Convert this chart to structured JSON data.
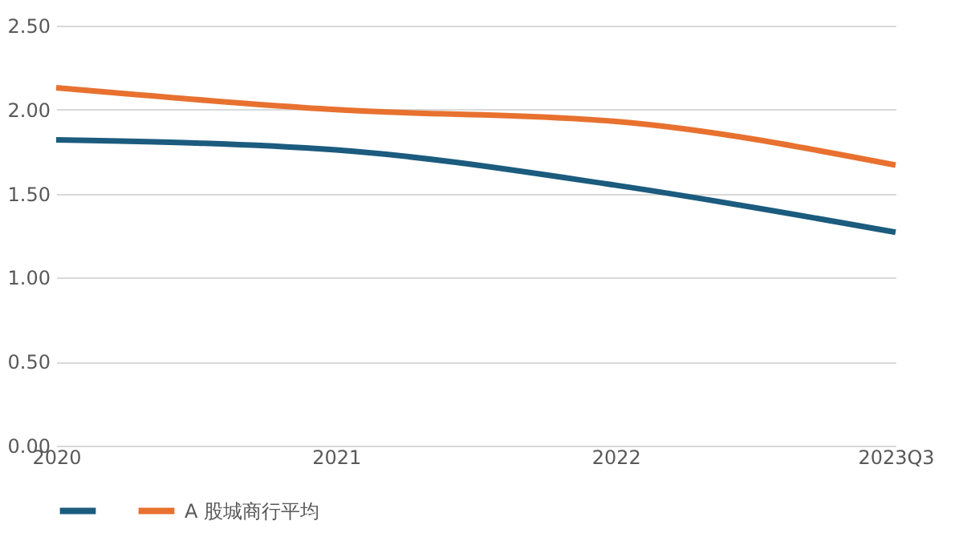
{
  "chart_data": {
    "type": "line",
    "categories": [
      "2020",
      "2021",
      "2022",
      "2023Q3"
    ],
    "series": [
      {
        "color": "#1b5b7e",
        "values": [
          1.82,
          1.76,
          1.55,
          1.27
        ]
      },
      {
        "name": "A 股城商行平均",
        "color": "#e8712f",
        "values": [
          2.13,
          2.0,
          1.93,
          1.67
        ]
      }
    ],
    "ylim": [
      0,
      2.5
    ],
    "yticks": [
      {
        "value": 0,
        "label": "0.00"
      },
      {
        "value": 0.5,
        "label": "0.50"
      },
      {
        "value": 1,
        "label": "1.00"
      },
      {
        "value": 1.5,
        "label": "1.50"
      },
      {
        "value": 2,
        "label": "2.00"
      },
      {
        "value": 2.5,
        "label": "2.50"
      }
    ],
    "grid": "y",
    "legend": "bottom",
    "marker": "none",
    "line_style": "solid"
  }
}
